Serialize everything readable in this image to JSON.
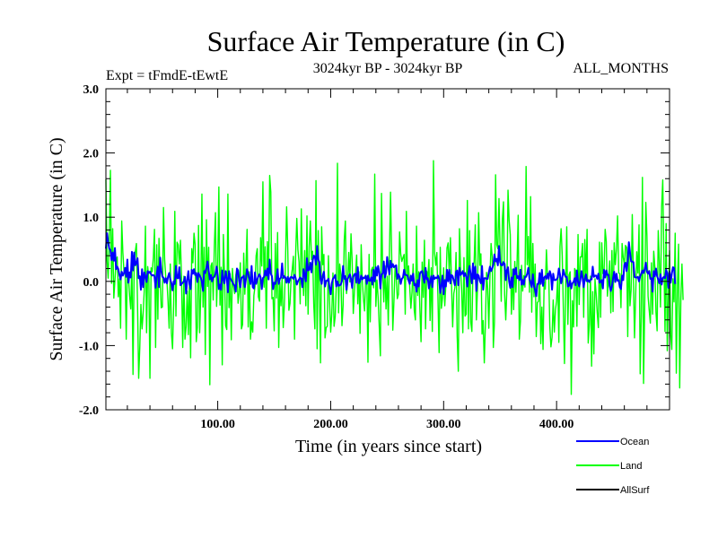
{
  "chart_data": {
    "type": "line",
    "title": "Surface Air Temperature (in C)",
    "subtitle_left": "Expt = tFmdE-tEwtE",
    "subtitle_center": "3024kyr BP - 3024kyr BP",
    "subtitle_right": "ALL_MONTHS",
    "xlabel": "Time (in years since start)",
    "ylabel": "Surface Air Temperature (in C)",
    "xlim": [
      1,
      500
    ],
    "ylim": [
      -2.0,
      3.0
    ],
    "x_ticks": [
      100,
      200,
      300,
      400
    ],
    "x_tick_labels": [
      "100.00",
      "200.00",
      "300.00",
      "400.00"
    ],
    "y_ticks": [
      -2,
      -1,
      0,
      1,
      2,
      3
    ],
    "y_tick_labels": [
      "-2.0",
      "-1.0",
      "0.0",
      "1.0",
      "2.0",
      "3.0"
    ],
    "x_start": 1,
    "x_step": 1,
    "series": [
      {
        "name": "Land",
        "color": "#00ff00",
        "values": [
          1.59,
          0.33,
          0.05,
          0.66,
          1.73,
          -0.03,
          0.82,
          -0.26,
          0.02,
          0.33,
          0.38,
          -0.24,
          0.04,
          -0.73,
          0.94,
          0.45,
          0.16,
          0.18,
          -0.9,
          0.26,
          0.06,
          -0.23,
          -0.43,
          0.3,
          -1.45,
          0.23,
          0.46,
          0.59,
          -0.35,
          -1.51,
          -1.02,
          -0.36,
          -0.74,
          -0.49,
          -0.13,
          0.86,
          -0.8,
          0.23,
          0.04,
          -1.51,
          0.21,
          0.15,
          0.37,
          0.81,
          -1.03,
          0.57,
          -0.59,
          0.67,
          0.01,
          -0.41,
          -0.4,
          1.15,
          0.34,
          0.06,
          0.02,
          -0.31,
          -0.73,
          0.27,
          -0.8,
          -1.05,
          -0.35,
          1.09,
          -0.54,
          0.61,
          0.57,
          0.27,
          0.64,
          0.0,
          -1.03,
          0.08,
          -0.9,
          -0.71,
          -0.15,
          -0.83,
          0.03,
          -1.19,
          0.51,
          0.29,
          0.75,
          0.57,
          -0.94,
          -0.71,
          0.87,
          -0.8,
          -0.19,
          1.36,
          -0.4,
          0.53,
          -1.14,
          0.96,
          -0.08,
          0.53,
          -1.61,
          0.24,
          0.29,
          -0.29,
          0.55,
          1.07,
          -0.39,
          0.21,
          1.47,
          -0.37,
          0.22,
          -1.3,
          0.73,
          0.08,
          -0.69,
          -0.75,
          1.36,
          -0.41,
          0.12,
          -0.91,
          0.2,
          -0.07,
          -0.19,
          0.1,
          0.2,
          -0.34,
          -0.18,
          0.29,
          -0.74,
          -0.67,
          0.44,
          -0.2,
          0.23,
          0.81,
          -0.71,
          0.15,
          -0.9,
          -0.63,
          -0.79,
          -0.22,
          -0.08,
          0.4,
          0.51,
          -0.24,
          -0.31,
          0.68,
          0.24,
          1.55,
          -0.09,
          0.54,
          -0.73,
          0.62,
          0.03,
          1.65,
          1.39,
          -0.27,
          -0.25,
          -0.77,
          0.59,
          -0.26,
          0.76,
          -1.03,
          -0.01,
          -0.38,
          0.06,
          -0.72,
          -0.37,
          0.3,
          1.16,
          0.51,
          -0.45,
          -0.34,
          0.06,
          0.19,
          0.39,
          -0.9,
          0.43,
          0.98,
          0.49,
          0.3,
          -0.35,
          1.13,
          0.16,
          -0.22,
          0.48,
          -0.38,
          1.02,
          -0.51,
          0.54,
          0.94,
          0.34,
          0.47,
          -0.35,
          -0.74,
          1.57,
          -1.05,
          0.79,
          -0.16,
          -1.27,
          0.85,
          0.26,
          0.42,
          -0.88,
          -0.72,
          -0.7,
          0.4,
          -0.3,
          -0.79,
          -0.5,
          0.13,
          -0.7,
          -0.55,
          -0.06,
          1.84,
          -0.49,
          0.27,
          0.11,
          -0.69,
          -0.37,
          0.64,
          0.94,
          -0.19,
          -0.03,
          0.45,
          -0.01,
          0.74,
          0.32,
          -0.5,
          -0.17,
          0.12,
          0.41,
          -0.35,
          0.15,
          -0.81,
          0.57,
          0.01,
          -0.27,
          -0.46,
          0.06,
          0.08,
          -1.26,
          0.42,
          -0.63,
          0.17,
          0.22,
          -0.1,
          1.67,
          -0.39,
          0.02,
          -0.25,
          -0.7,
          -1.16,
          1.37,
          0.19,
          -0.32,
          0.24,
          -0.43,
          0.08,
          -0.68,
          0.43,
          1.39,
          0.41,
          -0.76,
          -0.31,
          0.21,
          0.06,
          -0.27,
          -0.2,
          0.77,
          0.43,
          0.31,
          0.37,
          0.42,
          -0.51,
          1.09,
          0.03,
          0.24,
          -0.1,
          -0.42,
          -0.17,
          0.27,
          -0.45,
          -0.6,
          0.86,
          -0.22,
          0.15,
          -0.44,
          -0.94,
          0.3,
          -0.25,
          0.64,
          -0.74,
          0.16,
          0.05,
          0.34,
          -0.61,
          0.21,
          -0.78,
          1.88,
          0.44,
          0.25,
          0.45,
          -0.28,
          -1.11,
          0.53,
          -0.42,
          -0.26,
          0.21,
          -0.38,
          -0.04,
          0.52,
          0.6,
          0.13,
          0.68,
          -0.06,
          -0.71,
          -0.19,
          -0.09,
          0.45,
          -0.86,
          -1.4,
          0.82,
          0.19,
          -0.14,
          -0.8,
          0.37,
          -0.54,
          -0.51,
          1.26,
          -0.74,
          0.79,
          -0.63,
          -0.78,
          0.21,
          0.3,
          0.88,
          -0.6,
          -0.1,
          1.07,
          0.25,
          0.43,
          -0.82,
          -0.61,
          -1.27,
          -0.65,
          0.14,
          -0.11,
          -0.73,
          0.06,
          0.59,
          0.39,
          -1.03,
          -0.63,
          1.66,
          0.57,
          0.51,
          1.29,
          0.5,
          -0.31,
          0.96,
          1.24,
          -0.2,
          -0.6,
          -0.11,
          1.42,
          0.95,
          0.73,
          -0.51,
          0.19,
          -0.44,
          0.31,
          -0.17,
          0.29,
          1.03,
          -0.9,
          -0.62,
          0.25,
          -0.15,
          0.09,
          -0.09,
          1.79,
          0.26,
          0.7,
          -0.17,
          1.32,
          -0.48,
          0.59,
          -0.24,
          0.27,
          -0.86,
          -0.33,
          -0.31,
          0.13,
          -0.97,
          -0.4,
          -1.06,
          -0.01,
          -0.12,
          0.49,
          0.06,
          0.13,
          -0.7,
          -1.02,
          -0.87,
          -0.29,
          -0.79,
          -0.44,
          -0.31,
          0.08,
          -0.95,
          0.54,
          0.82,
          0.4,
          -0.44,
          -1.28,
          -0.11,
          0.85,
          -0.67,
          0.1,
          0.15,
          -1.76,
          -0.3,
          -0.71,
          0.2,
          0.16,
          -0.7,
          0.73,
          -0.36,
          0.38,
          0.38,
          0.59,
          -0.56,
          0.65,
          0.01,
          0.81,
          -0.96,
          -0.67,
          0.08,
          -1.32,
          -0.16,
          -1.13,
          0.04,
          -0.19,
          -0.49,
          -0.72,
          0.61,
          -0.56,
          0.6,
          0.12,
          0.14,
          0.81,
          0.62,
          -0.23,
          0.04,
          0.32,
          -0.49,
          0.48,
          -0.47,
          0.6,
          0.26,
          0.5,
          1.02,
          0.13,
          0.12,
          -0.41,
          0.59,
          0.37,
          0.26,
          0.56,
          0.53,
          -0.86,
          0.54,
          -0.38,
          -0.13,
          1.04,
          0.07,
          -0.88,
          -0.23,
          0.46,
          0.13,
          0.88,
          -1.44,
          -0.53,
          1.62,
          -1.59,
          -0.42,
          1.23,
          0.7,
          -0.23,
          -0.45,
          -0.65,
          0.29,
          -0.51,
          0.47,
          0.22,
          -0.48,
          -0.77,
          0.79,
          0.31,
          -0.4,
          1.16,
          1.58,
          0.36,
          -0.78,
          0.9,
          -1.08,
          -0.19,
          0.48,
          -0.84,
          -1.06,
          0.04,
          -0.32,
          0.75,
          -1.43,
          -0.07,
          0.58,
          -1.66,
          -0.28,
          0.27,
          -0.29
        ]
      },
      {
        "name": "Ocean",
        "color": "#0000ff",
        "values": [
          0.51,
          0.75,
          0.61,
          0.51,
          0.49,
          0.33,
          0.45,
          0.32,
          0.52,
          0.19,
          0.23,
          0.19,
          0.1,
          0.03,
          0.15,
          0.09,
          0.13,
          0.21,
          0.07,
          0.34,
          -0.02,
          0.14,
          0.06,
          0.46,
          0.17,
          0.45,
          0.25,
          0.29,
          0.36,
          0.05,
          0.08,
          -0.13,
          0.19,
          -0.09,
          0.14,
          0.08,
          -0.01,
          0.16,
          0.13,
          0.15,
          0.11,
          0.09,
          0.1,
          0.08,
          -0.1,
          0.11,
          0.23,
          -0.09,
          0.37,
          0.17,
          0.07,
          0.06,
          -0.02,
          0.05,
          -0.03,
          0.07,
          0.13,
          0.03,
          -0.03,
          -0.14,
          0.0,
          -0.04,
          0.24,
          0.05,
          0.05,
          0.22,
          -0.06,
          -0.04,
          -0.02,
          0.0,
          0.07,
          -0.19,
          0.02,
          0.16,
          -0.04,
          -0.12,
          0.18,
          0.12,
          0.19,
          0.1,
          0.13,
          -0.01,
          0.13,
          0.09,
          0.06,
          -0.01,
          -0.15,
          0.16,
          0.13,
          0.21,
          0.31,
          0.17,
          0.03,
          0.1,
          0.0,
          0.06,
          0.07,
          0.12,
          0.23,
          0.1,
          -0.12,
          -0.05,
          -0.13,
          0.17,
          0.03,
          -0.03,
          0.16,
          0.06,
          -0.17,
          0.16,
          0.05,
          0.02,
          -0.01,
          -0.05,
          -0.07,
          -0.16,
          0.2,
          0.17,
          0.01,
          -0.09,
          0.06,
          0.06,
          0.09,
          -0.09,
          0.04,
          0.19,
          0.12,
          0.04,
          -0.04,
          0.24,
          -0.09,
          -0.11,
          0.14,
          -0.04,
          0.03,
          0.08,
          0.11,
          0.06,
          -0.12,
          0.05,
          0.07,
          0.17,
          0.09,
          0.2,
          0.03,
          0.34,
          0.12,
          0.08,
          -0.12,
          -0.02,
          -0.04,
          0.03,
          0.19,
          -0.04,
          0.04,
          0.06,
          0.28,
          0.05,
          0.08,
          0.06,
          -0.02,
          0.07,
          -0.02,
          0.05,
          0.07,
          0.06,
          0.04,
          0.1,
          0.05,
          -0.05,
          0.0,
          0.03,
          0.06,
          0.04,
          -0.09,
          0.19,
          0.11,
          0.0,
          0.36,
          0.17,
          0.18,
          0.29,
          0.14,
          0.32,
          0.4,
          0.39,
          0.26,
          0.55,
          0.34,
          0.3,
          0.04,
          -0.04,
          0.09,
          0.15,
          -0.08,
          0.01,
          0.01,
          0.04,
          -0.1,
          -0.2,
          -0.03,
          0.04,
          0.06,
          0.1,
          -0.08,
          0.0,
          -0.07,
          -0.06,
          -0.05,
          0.01,
          0.24,
          0.04,
          0.08,
          -0.13,
          0.04,
          0.07,
          0.11,
          0.04,
          -0.1,
          0.07,
          0.11,
          0.12,
          -0.02,
          0.22,
          -0.03,
          0.0,
          0.09,
          0.03,
          0.06,
          0.05,
          0.09,
          -0.04,
          0.09,
          0.01,
          0.01,
          0.06,
          -0.05,
          0.18,
          0.0,
          0.22,
          0.09,
          0.24,
          0.14,
          -0.11,
          0.11,
          0.12,
          0.31,
          0.06,
          0.13,
          0.38,
          0.23,
          0.11,
          0.32,
          0.22,
          0.27,
          0.22,
          0.24,
          0.25,
          0.04,
          0.11,
          0.07,
          -0.04,
          0.04,
          0.06,
          0.18,
          0.1,
          0.1,
          0.09,
          0.01,
          -0.04,
          0.09,
          0.01,
          0.12,
          -0.06,
          -0.04,
          -0.16,
          0.02,
          -0.08,
          0.12,
          0.15,
          0.16,
          0.06,
          -0.02,
          0.21,
          0.03,
          0.05,
          -0.11,
          0.0,
          0.08,
          -0.09,
          0.09,
          0.04,
          0.06,
          0.05,
          0.09,
          0.04,
          -0.18,
          -0.07,
          0.09,
          -0.2,
          0.02,
          -0.08,
          0.18,
          0.0,
          0.18,
          -0.03,
          0.1,
          0.08,
          0.01,
          -0.06,
          0.15,
          0.17,
          -0.06,
          0.21,
          0.1,
          0.12,
          0.16,
          0.08,
          0.13,
          0.07,
          -0.08,
          0.14,
          0.24,
          0.1,
          -0.03,
          0.28,
          0.04,
          0.23,
          -0.15,
          0.11,
          0.09,
          0.01,
          -0.03,
          0.24,
          -0.13,
          0.05,
          0.05,
          0.04,
          0.04,
          0.14,
          0.23,
          0.16,
          0.2,
          0.26,
          0.42,
          0.31,
          0.35,
          0.25,
          0.55,
          0.3,
          0.25,
          0.25,
          0.3,
          0.27,
          0.02,
          0.17,
          0.22,
          0.0,
          -0.1,
          0.06,
          -0.09,
          0.19,
          0.11,
          0.21,
          0.05,
          0.08,
          0.02,
          0.18,
          -0.05,
          0.02,
          -0.05,
          0.07,
          0.07,
          0.12,
          0.21,
          0.04,
          -0.02,
          -0.09,
          0.11,
          -0.07,
          -0.14,
          -0.23,
          -0.04,
          -0.04,
          0.13,
          -0.04,
          0.18,
          -0.07,
          0.06,
          0.08,
          0.04,
          0.12,
          0.04,
          0.16,
          0.1,
          -0.13,
          0.12,
          0.02,
          0.02,
          0.03,
          0.06,
          0.2,
          0.11,
          -0.03,
          0.05,
          0.18,
          0.11,
          0.07,
          0.07,
          -0.08,
          -0.07,
          0.01,
          -0.11,
          -0.03,
          -0.01,
          0.05,
          -0.06,
          0.17,
          -0.01,
          -0.08,
          0.02,
          0.16,
          0.06,
          -0.09,
          0.04,
          0.11,
          0.0,
          0.02,
          -0.01,
          0.03,
          0.03,
          0.23,
          0.07,
          0.09,
          0.09,
          0.04,
          0.12,
          -0.02,
          -0.01,
          0.02,
          -0.11,
          0.18,
          0.06,
          0.17,
          0.1,
          0.1,
          -0.07,
          -0.15,
          -0.08,
          0.05,
          0.15,
          -0.01,
          0.12,
          0.01,
          0.02,
          -0.09,
          -0.12,
          0.09,
          0.02,
          0.26,
          0.29,
          0.16,
          0.31,
          0.61,
          0.45,
          0.31,
          0.31,
          0.3,
          0.07,
          0.06,
          0.06,
          0.07,
          0.0,
          0.08,
          0.12,
          0.17,
          0.13,
          0.19,
          0.29,
          0.15,
          0.12,
          0.16,
          0.04,
          0.05,
          -0.16,
          0.16,
          0.08,
          0.2,
          0.08,
          0.03,
          -0.03,
          0.11,
          -0.05,
          0.05,
          0.07,
          0.05,
          0.18,
          0.13,
          -0.1,
          0.15,
          -0.02,
          0.12,
          0.22,
          0.21,
          -0.04
        ]
      },
      {
        "name": "AllSurf",
        "color": "#000000",
        "values": []
      }
    ],
    "legend_position": "bottom-right",
    "grid": false
  }
}
